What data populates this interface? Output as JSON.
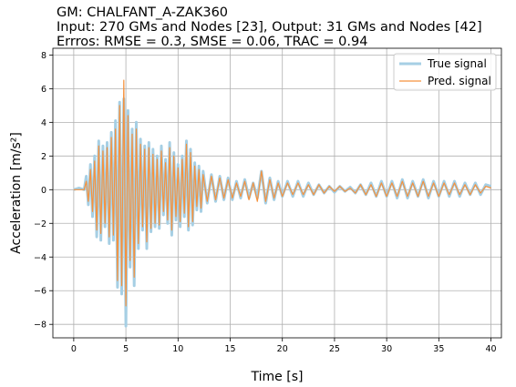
{
  "chart_data": {
    "type": "line",
    "title_lines": [
      "GM: CHALFANT_A-ZAK360",
      "Input: 270 GMs and Nodes [23], Output: 31 GMs and Nodes [42]",
      "Errros: RMSE = 0.3, SMSE = 0.06, TRAC = 0.94"
    ],
    "xlabel": "Time [s]",
    "ylabel": "Acceleration [m/s²]",
    "xlim": [
      -2,
      41
    ],
    "ylim": [
      -8.8,
      8.4
    ],
    "xticks": [
      0,
      5,
      10,
      15,
      20,
      25,
      30,
      35,
      40
    ],
    "yticks": [
      -8,
      -6,
      -4,
      -2,
      0,
      2,
      4,
      6,
      8
    ],
    "grid": true,
    "legend_position": "top-right",
    "series": [
      {
        "name": "True signal",
        "color": "#a6cfe4",
        "points": [
          [
            0,
            0
          ],
          [
            0.5,
            0.1
          ],
          [
            1,
            0
          ],
          [
            1.2,
            0.8
          ],
          [
            1.4,
            -0.9
          ],
          [
            1.6,
            1.5
          ],
          [
            1.8,
            -1.6
          ],
          [
            2.0,
            2.0
          ],
          [
            2.2,
            -2.8
          ],
          [
            2.4,
            2.9
          ],
          [
            2.6,
            -3.0
          ],
          [
            2.8,
            2.6
          ],
          [
            3.0,
            -2.2
          ],
          [
            3.2,
            2.8
          ],
          [
            3.4,
            -3.2
          ],
          [
            3.6,
            3.4
          ],
          [
            3.8,
            -3.0
          ],
          [
            4.0,
            4.1
          ],
          [
            4.2,
            -5.8
          ],
          [
            4.4,
            5.2
          ],
          [
            4.6,
            -6.2
          ],
          [
            4.8,
            5.4
          ],
          [
            5.0,
            -8.1
          ],
          [
            5.2,
            4.7
          ],
          [
            5.4,
            -4.6
          ],
          [
            5.6,
            3.6
          ],
          [
            5.8,
            -5.7
          ],
          [
            6.0,
            4.0
          ],
          [
            6.2,
            -3.5
          ],
          [
            6.4,
            3.0
          ],
          [
            6.6,
            -2.4
          ],
          [
            6.8,
            2.6
          ],
          [
            7.0,
            -3.5
          ],
          [
            7.2,
            2.8
          ],
          [
            7.4,
            -2.5
          ],
          [
            7.6,
            2.4
          ],
          [
            7.8,
            -2.2
          ],
          [
            8.0,
            2.0
          ],
          [
            8.2,
            -2.3
          ],
          [
            8.4,
            2.6
          ],
          [
            8.6,
            -1.5
          ],
          [
            8.8,
            1.8
          ],
          [
            9.0,
            -2.0
          ],
          [
            9.2,
            2.8
          ],
          [
            9.4,
            -2.7
          ],
          [
            9.6,
            2.2
          ],
          [
            9.8,
            -1.8
          ],
          [
            10.0,
            1.5
          ],
          [
            10.2,
            -2.2
          ],
          [
            10.4,
            2.0
          ],
          [
            10.6,
            -1.6
          ],
          [
            10.8,
            2.9
          ],
          [
            11.0,
            -2.4
          ],
          [
            11.2,
            2.4
          ],
          [
            11.4,
            -2.1
          ],
          [
            11.6,
            1.6
          ],
          [
            11.8,
            -1.2
          ],
          [
            12.0,
            1.4
          ],
          [
            12.2,
            -1.3
          ],
          [
            12.4,
            1.1
          ],
          [
            12.8,
            -0.8
          ],
          [
            13.2,
            0.9
          ],
          [
            13.6,
            -0.7
          ],
          [
            14.0,
            0.8
          ],
          [
            14.4,
            -0.6
          ],
          [
            14.8,
            0.7
          ],
          [
            15.2,
            -0.6
          ],
          [
            15.6,
            0.5
          ],
          [
            16.0,
            -0.5
          ],
          [
            16.4,
            0.6
          ],
          [
            16.8,
            -0.5
          ],
          [
            17.2,
            0.4
          ],
          [
            17.6,
            -0.5
          ],
          [
            18.0,
            1.1
          ],
          [
            18.4,
            -0.8
          ],
          [
            18.8,
            0.7
          ],
          [
            19.2,
            -0.6
          ],
          [
            19.6,
            0.5
          ],
          [
            20.0,
            -0.4
          ],
          [
            20.5,
            0.5
          ],
          [
            21.0,
            -0.4
          ],
          [
            21.5,
            0.5
          ],
          [
            22.0,
            -0.4
          ],
          [
            22.5,
            0.4
          ],
          [
            23.0,
            -0.3
          ],
          [
            23.5,
            0.3
          ],
          [
            24.0,
            -0.2
          ],
          [
            24.5,
            0.2
          ],
          [
            25.0,
            -0.15
          ],
          [
            25.5,
            0.2
          ],
          [
            26.0,
            -0.1
          ],
          [
            26.5,
            0.15
          ],
          [
            27.0,
            -0.2
          ],
          [
            27.5,
            0.3
          ],
          [
            28.0,
            -0.3
          ],
          [
            28.5,
            0.4
          ],
          [
            29.0,
            -0.4
          ],
          [
            29.5,
            0.5
          ],
          [
            30.0,
            -0.4
          ],
          [
            30.5,
            0.5
          ],
          [
            31.0,
            -0.5
          ],
          [
            31.5,
            0.6
          ],
          [
            32.0,
            -0.5
          ],
          [
            32.5,
            0.5
          ],
          [
            33.0,
            -0.4
          ],
          [
            33.5,
            0.6
          ],
          [
            34.0,
            -0.5
          ],
          [
            34.5,
            0.5
          ],
          [
            35.0,
            -0.4
          ],
          [
            35.5,
            0.5
          ],
          [
            36.0,
            -0.4
          ],
          [
            36.5,
            0.5
          ],
          [
            37.0,
            -0.4
          ],
          [
            37.5,
            0.4
          ],
          [
            38.0,
            -0.3
          ],
          [
            38.5,
            0.4
          ],
          [
            39.0,
            -0.3
          ],
          [
            39.5,
            0.3
          ],
          [
            40.0,
            0.2
          ]
        ]
      },
      {
        "name": "Pred. signal",
        "color": "#f5923e",
        "points": [
          [
            0,
            0
          ],
          [
            0.5,
            0
          ],
          [
            1,
            0
          ],
          [
            1.2,
            0.5
          ],
          [
            1.4,
            -0.7
          ],
          [
            1.6,
            1.2
          ],
          [
            1.8,
            -1.3
          ],
          [
            2.0,
            1.7
          ],
          [
            2.2,
            -2.4
          ],
          [
            2.4,
            2.6
          ],
          [
            2.6,
            -2.6
          ],
          [
            2.8,
            2.3
          ],
          [
            3.0,
            -2.0
          ],
          [
            3.2,
            2.5
          ],
          [
            3.4,
            -2.8
          ],
          [
            3.6,
            3.1
          ],
          [
            3.8,
            -2.7
          ],
          [
            4.0,
            3.6
          ],
          [
            4.2,
            -5.4
          ],
          [
            4.4,
            5.0
          ],
          [
            4.6,
            -5.7
          ],
          [
            4.8,
            6.5
          ],
          [
            5.0,
            -6.9
          ],
          [
            5.2,
            4.4
          ],
          [
            5.4,
            -4.2
          ],
          [
            5.6,
            3.3
          ],
          [
            5.8,
            -5.2
          ],
          [
            6.0,
            3.6
          ],
          [
            6.2,
            -3.2
          ],
          [
            6.4,
            2.7
          ],
          [
            6.6,
            -2.2
          ],
          [
            6.8,
            2.4
          ],
          [
            7.0,
            -3.1
          ],
          [
            7.2,
            2.5
          ],
          [
            7.4,
            -2.3
          ],
          [
            7.6,
            2.1
          ],
          [
            7.8,
            -2.0
          ],
          [
            8.0,
            1.8
          ],
          [
            8.2,
            -2.1
          ],
          [
            8.4,
            2.3
          ],
          [
            8.6,
            -1.3
          ],
          [
            8.8,
            1.6
          ],
          [
            9.0,
            -1.8
          ],
          [
            9.2,
            2.5
          ],
          [
            9.4,
            -2.4
          ],
          [
            9.6,
            2.0
          ],
          [
            9.8,
            -1.6
          ],
          [
            10.0,
            1.3
          ],
          [
            10.2,
            -1.9
          ],
          [
            10.4,
            1.8
          ],
          [
            10.6,
            -1.4
          ],
          [
            10.8,
            2.7
          ],
          [
            11.0,
            -2.2
          ],
          [
            11.2,
            2.2
          ],
          [
            11.4,
            -1.9
          ],
          [
            11.6,
            1.4
          ],
          [
            11.8,
            -1.0
          ],
          [
            12.0,
            1.2
          ],
          [
            12.2,
            -1.1
          ],
          [
            12.4,
            0.9
          ],
          [
            12.8,
            -0.7
          ],
          [
            13.2,
            0.8
          ],
          [
            13.6,
            -0.6
          ],
          [
            14.0,
            0.7
          ],
          [
            14.4,
            -0.5
          ],
          [
            14.8,
            0.6
          ],
          [
            15.2,
            -0.5
          ],
          [
            15.6,
            0.4
          ],
          [
            16.0,
            -0.4
          ],
          [
            16.4,
            0.5
          ],
          [
            16.8,
            -0.6
          ],
          [
            17.2,
            0.4
          ],
          [
            17.6,
            -0.7
          ],
          [
            18.0,
            1.1
          ],
          [
            18.4,
            -0.7
          ],
          [
            18.8,
            0.6
          ],
          [
            19.2,
            -0.5
          ],
          [
            19.6,
            0.4
          ],
          [
            20.0,
            -0.4
          ],
          [
            20.5,
            0.4
          ],
          [
            21.0,
            -0.3
          ],
          [
            21.5,
            0.4
          ],
          [
            22.0,
            -0.3
          ],
          [
            22.5,
            0.3
          ],
          [
            23.0,
            -0.3
          ],
          [
            23.5,
            0.3
          ],
          [
            24.0,
            -0.2
          ],
          [
            24.5,
            0.2
          ],
          [
            25.0,
            -0.1
          ],
          [
            25.5,
            0.2
          ],
          [
            26.0,
            -0.1
          ],
          [
            26.5,
            0.1
          ],
          [
            27.0,
            -0.2
          ],
          [
            27.5,
            0.3
          ],
          [
            28.0,
            -0.3
          ],
          [
            28.5,
            0.3
          ],
          [
            29.0,
            -0.4
          ],
          [
            29.5,
            0.4
          ],
          [
            30.0,
            -0.4
          ],
          [
            30.5,
            0.4
          ],
          [
            31.0,
            -0.4
          ],
          [
            31.5,
            0.5
          ],
          [
            32.0,
            -0.4
          ],
          [
            32.5,
            0.4
          ],
          [
            33.0,
            -0.4
          ],
          [
            33.5,
            0.5
          ],
          [
            34.0,
            -0.4
          ],
          [
            34.5,
            0.4
          ],
          [
            35.0,
            -0.4
          ],
          [
            35.5,
            0.4
          ],
          [
            36.0,
            -0.3
          ],
          [
            36.5,
            0.4
          ],
          [
            37.0,
            -0.3
          ],
          [
            37.5,
            0.3
          ],
          [
            38.0,
            -0.3
          ],
          [
            38.5,
            0.3
          ],
          [
            39.0,
            -0.2
          ],
          [
            39.5,
            0.2
          ],
          [
            40.0,
            0.1
          ]
        ]
      }
    ]
  }
}
